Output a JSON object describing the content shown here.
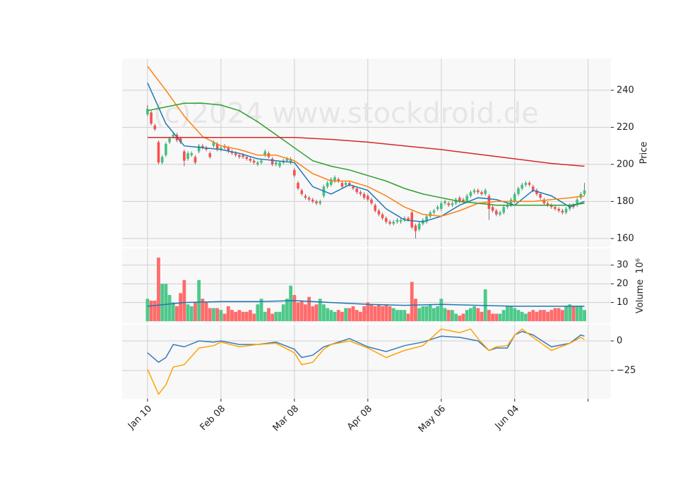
{
  "chart_data": [
    {
      "type": "candlestick",
      "ylabel": "Price",
      "watermark": "(c)2024 www.stockdroid.de",
      "up_color": "#3cc47c",
      "down_color": "#ff4d4d",
      "xlim": [
        -6.9,
        126.2
      ],
      "ylim": [
        155.4,
        257.1
      ],
      "yticks": [
        160,
        180,
        200,
        220,
        240
      ],
      "grid": true,
      "open": [
        227,
        228,
        221,
        212,
        201,
        205,
        212,
        215,
        216,
        214,
        207,
        203,
        205,
        204,
        207,
        210,
        209,
        206,
        210,
        211,
        208,
        210,
        209,
        207,
        206,
        205,
        205,
        204,
        203,
        202,
        200,
        201,
        205,
        206,
        203,
        200,
        199,
        201,
        202,
        201,
        197,
        190,
        186,
        183,
        182,
        181,
        180,
        179,
        183,
        188,
        189,
        191,
        192,
        190,
        189,
        190,
        188,
        187,
        185,
        184,
        183,
        181,
        178,
        175,
        173,
        171,
        169,
        168,
        169,
        169,
        170,
        171,
        174,
        167,
        165,
        168,
        169,
        172,
        174,
        176,
        176,
        179,
        179,
        178,
        179,
        182,
        181,
        180,
        183,
        185,
        186,
        185,
        184,
        183,
        177,
        175,
        173,
        174,
        177,
        178,
        180,
        184,
        187,
        189,
        190,
        188,
        186,
        184,
        181,
        179,
        178,
        177,
        176,
        175,
        174,
        176,
        178,
        178,
        182,
        184
      ],
      "high": [
        232,
        229,
        222,
        213,
        205,
        212,
        215,
        217,
        217,
        215,
        208,
        207,
        207,
        205,
        211,
        211,
        210,
        207,
        213,
        212,
        210,
        211,
        210,
        208,
        207,
        206,
        206,
        205,
        204,
        203,
        202,
        203,
        208,
        207,
        204,
        202,
        202,
        203,
        204,
        204,
        198,
        191,
        187,
        184,
        183,
        182,
        181,
        181,
        189,
        191,
        193,
        194,
        193,
        191,
        191,
        191,
        189,
        188,
        186,
        185,
        184,
        182,
        179,
        176,
        174,
        172,
        170,
        170,
        171,
        171,
        172,
        172,
        175,
        168,
        169,
        171,
        173,
        175,
        176,
        178,
        180,
        181,
        180,
        180,
        182,
        183,
        182,
        184,
        186,
        187,
        187,
        186,
        187,
        184,
        178,
        176,
        175,
        178,
        179,
        182,
        185,
        188,
        190,
        191,
        191,
        189,
        187,
        185,
        182,
        180,
        179,
        178,
        177,
        176,
        177,
        179,
        179,
        182,
        185,
        190
      ],
      "low": [
        226,
        221,
        218,
        200,
        200,
        204,
        211,
        214,
        212,
        211,
        199,
        202,
        204,
        200,
        206,
        208,
        207,
        203,
        209,
        207,
        207,
        208,
        206,
        205,
        204,
        203,
        203,
        202,
        201,
        200,
        199,
        200,
        204,
        203,
        199,
        199,
        198,
        200,
        201,
        200,
        193,
        186,
        183,
        181,
        180,
        179,
        178,
        178,
        182,
        187,
        188,
        190,
        190,
        187,
        188,
        188,
        186,
        184,
        183,
        181,
        180,
        178,
        174,
        172,
        170,
        168,
        167,
        167,
        168,
        168,
        169,
        169,
        165,
        160,
        164,
        167,
        168,
        171,
        173,
        175,
        175,
        178,
        177,
        177,
        178,
        179,
        179,
        179,
        182,
        184,
        184,
        183,
        183,
        170,
        174,
        172,
        172,
        173,
        176,
        177,
        179,
        183,
        186,
        188,
        188,
        185,
        183,
        181,
        178,
        177,
        176,
        175,
        174,
        173,
        173,
        175,
        176,
        177,
        181,
        183
      ],
      "close": [
        230,
        222,
        219,
        201,
        204,
        211,
        214,
        216,
        213,
        212,
        202,
        206,
        206,
        201,
        210,
        209,
        208,
        204,
        212,
        208,
        209,
        209,
        207,
        206,
        205,
        204,
        204,
        203,
        202,
        201,
        201,
        202,
        207,
        204,
        200,
        201,
        201,
        202,
        203,
        203,
        194,
        187,
        184,
        182,
        181,
        180,
        179,
        180,
        188,
        190,
        192,
        193,
        191,
        188,
        190,
        189,
        187,
        185,
        184,
        182,
        181,
        179,
        175,
        173,
        171,
        169,
        168,
        169,
        170,
        170,
        171,
        170,
        166,
        164,
        168,
        170,
        172,
        174,
        175,
        177,
        179,
        180,
        178,
        179,
        181,
        180,
        180,
        183,
        185,
        186,
        185,
        184,
        186,
        176,
        175,
        173,
        174,
        177,
        178,
        181,
        184,
        187,
        189,
        190,
        189,
        186,
        184,
        182,
        179,
        178,
        177,
        176,
        175,
        174,
        176,
        178,
        177,
        181,
        184,
        186
      ],
      "series": [
        {
          "color": "#1f77b4",
          "x": [
            0,
            5,
            10,
            15,
            20,
            25,
            30,
            35,
            40,
            45,
            50,
            55,
            60,
            65,
            70,
            75,
            80,
            85,
            90,
            95,
            100,
            105,
            110,
            115,
            119
          ],
          "values": [
            244,
            222,
            210,
            209,
            208,
            206,
            203,
            202,
            201,
            188,
            184,
            189,
            186,
            176,
            170,
            169,
            172,
            178,
            182,
            181,
            178,
            186,
            183,
            177,
            180
          ]
        },
        {
          "color": "#ff7f0e",
          "x": [
            0,
            5,
            10,
            15,
            20,
            25,
            30,
            35,
            40,
            45,
            50,
            55,
            60,
            65,
            70,
            75,
            80,
            85,
            90,
            95,
            100,
            105,
            110,
            115,
            119
          ],
          "values": [
            253,
            240,
            226,
            215,
            210,
            208,
            205,
            205,
            202,
            195,
            191,
            191,
            188,
            183,
            177,
            173,
            172,
            175,
            179,
            180,
            180,
            180,
            181,
            182,
            183
          ]
        },
        {
          "color": "#2ca02c",
          "x": [
            0,
            5,
            10,
            15,
            20,
            25,
            30,
            35,
            40,
            45,
            50,
            55,
            60,
            65,
            70,
            75,
            80,
            85,
            90,
            95,
            100,
            105,
            110,
            115,
            119
          ],
          "values": [
            229,
            231,
            233,
            233,
            232,
            229,
            223,
            216,
            209,
            202,
            199,
            197,
            194,
            191,
            187,
            184,
            182,
            180,
            179,
            178,
            178,
            178,
            178,
            178,
            179
          ]
        },
        {
          "color": "#d62728",
          "x": [
            0,
            10,
            20,
            30,
            40,
            50,
            60,
            70,
            80,
            90,
            100,
            110,
            119
          ],
          "values": [
            214.5,
            214.5,
            214.5,
            214.5,
            214.5,
            213.5,
            212,
            210,
            208,
            205.5,
            203,
            200.5,
            199
          ]
        }
      ]
    },
    {
      "type": "bar",
      "ylabel": "Volume",
      "yexponent": "10⁶",
      "xlim": [
        -6.9,
        126.2
      ],
      "ylim": [
        -1.1,
        38.9
      ],
      "yticks": [
        10,
        20,
        30
      ],
      "grid": true,
      "values": [
        12,
        11,
        11,
        34,
        20,
        20,
        14,
        10,
        8,
        15,
        22,
        9,
        8,
        10,
        22,
        12,
        10,
        7,
        7,
        7,
        6,
        4,
        8,
        6,
        5,
        6,
        5,
        5,
        6,
        4,
        9,
        12,
        5,
        7,
        4,
        5,
        5,
        9,
        12,
        19,
        14,
        10,
        11,
        9,
        13,
        8,
        9,
        12,
        9,
        7,
        6,
        5,
        6,
        5,
        7,
        7,
        8,
        6,
        5,
        8,
        10,
        9,
        8,
        9,
        8,
        9,
        8,
        7,
        6,
        6,
        6,
        4,
        21,
        12,
        7,
        8,
        8,
        9,
        7,
        8,
        12,
        7,
        6,
        6,
        4,
        3,
        4,
        6,
        7,
        8,
        7,
        5,
        17,
        6,
        4,
        4,
        4,
        6,
        8,
        8,
        7,
        6,
        5,
        4,
        5,
        6,
        5,
        6,
        6,
        5,
        6,
        7,
        7,
        6,
        8,
        9,
        8,
        8,
        8,
        6
      ],
      "up_color": "#4dc98a",
      "down_color": "#ff6b6b",
      "series": [
        {
          "color": "#1f77b4",
          "x": [
            0,
            10,
            20,
            30,
            40,
            50,
            60,
            70,
            80,
            90,
            100,
            110,
            119
          ],
          "values": [
            8,
            10,
            10.5,
            10.5,
            11,
            10,
            9,
            8.5,
            9,
            8.5,
            8,
            8,
            8
          ]
        }
      ]
    },
    {
      "type": "line",
      "xlim": [
        -6.9,
        126.2
      ],
      "ylim": [
        -48.8,
        13.7
      ],
      "yticks": [
        {
          "value": -25,
          "label": "−25"
        },
        0
      ],
      "grid": true,
      "xticks": [
        {
          "value": 0,
          "label": "Jan 10"
        },
        {
          "value": 20,
          "label": "Feb 08"
        },
        {
          "value": 40,
          "label": "Mar 08"
        },
        {
          "value": 60,
          "label": "Apr 08"
        },
        {
          "value": 80,
          "label": "May 06"
        },
        {
          "value": 100,
          "label": "Jun 04"
        },
        {
          "value": 120,
          "label": null
        }
      ],
      "series": [
        {
          "color": "#3a7ab8",
          "x": [
            0,
            3,
            5,
            7,
            10,
            14,
            18,
            20,
            25,
            30,
            35,
            40,
            42,
            45,
            48,
            50,
            55,
            60,
            65,
            70,
            75,
            80,
            85,
            90,
            93,
            95,
            98,
            100,
            102,
            105,
            110,
            115,
            118,
            119
          ],
          "values": [
            -10,
            -18,
            -14,
            -3,
            -5,
            0,
            -1,
            0,
            -3,
            -3,
            -1,
            -7,
            -14,
            -12,
            -5,
            -3,
            2,
            -5,
            -9,
            -4,
            -1,
            4,
            3,
            0,
            -8,
            -6,
            -6,
            5,
            8,
            5,
            -5,
            -2,
            5,
            4
          ]
        },
        {
          "color": "#ffa500",
          "x": [
            0,
            3,
            5,
            7,
            10,
            14,
            18,
            20,
            25,
            30,
            35,
            40,
            42,
            45,
            48,
            50,
            55,
            60,
            65,
            70,
            75,
            80,
            85,
            88,
            90,
            93,
            95,
            98,
            100,
            102,
            105,
            110,
            115,
            118,
            119
          ],
          "values": [
            -24,
            -45,
            -37,
            -22,
            -20,
            -6,
            -4,
            -1,
            -5,
            -3,
            -2,
            -10,
            -20,
            -18,
            -7,
            -3,
            0,
            -6,
            -14,
            -8,
            -4,
            10,
            7,
            10,
            2,
            -8,
            -5,
            -4,
            5,
            10,
            3,
            -8,
            -2,
            3,
            1
          ]
        }
      ]
    }
  ]
}
